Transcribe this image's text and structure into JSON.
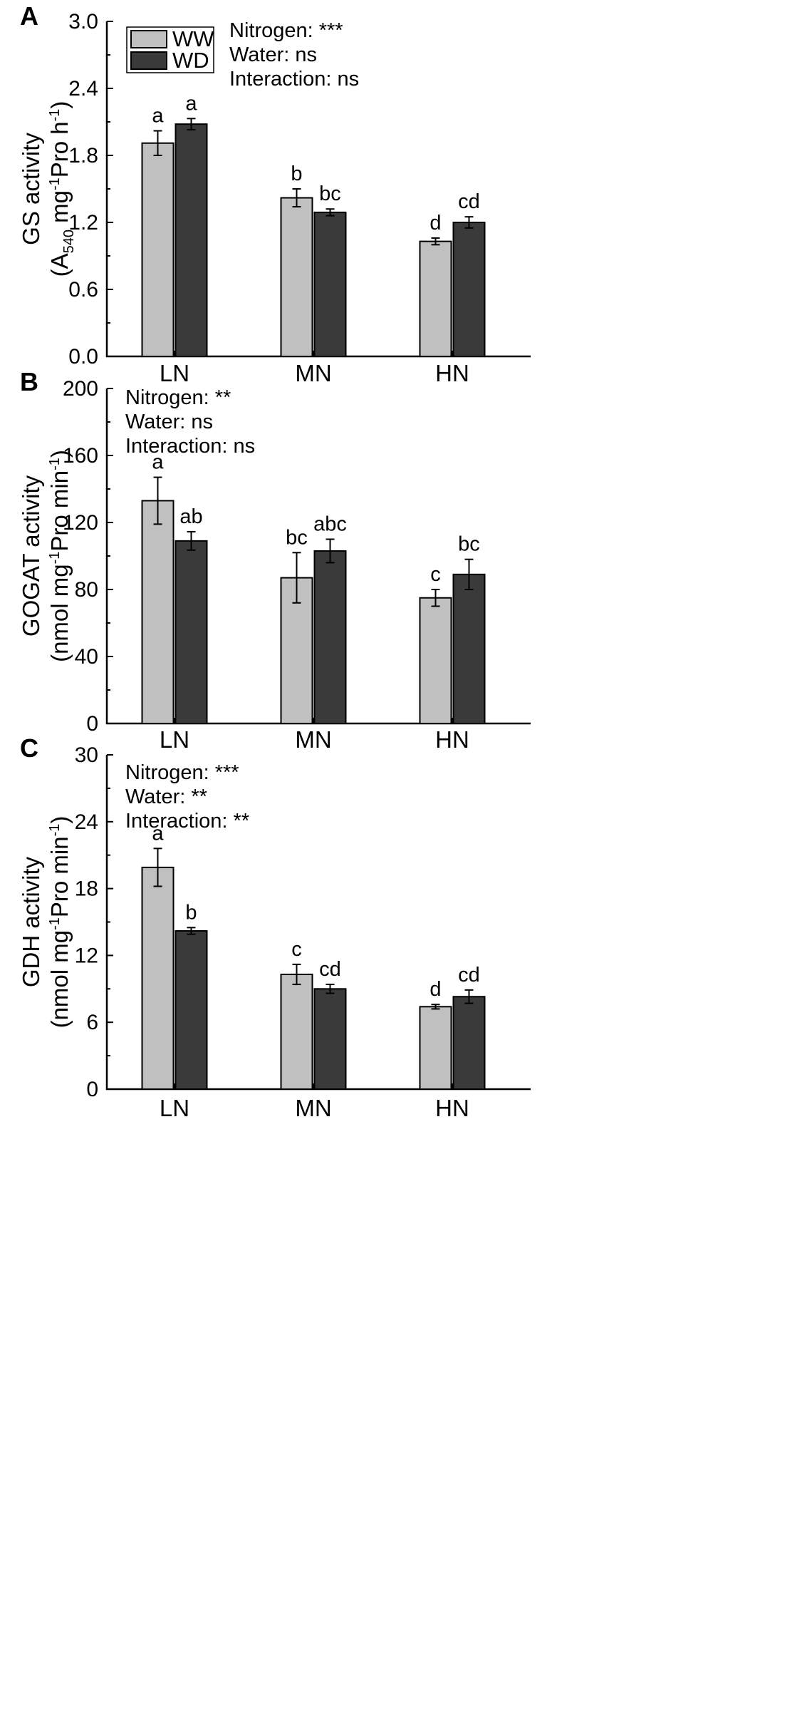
{
  "legend": {
    "items": [
      {
        "name": "WW",
        "color": "#c0c0c0"
      },
      {
        "name": "WD",
        "color": "#3a3a3a"
      }
    ]
  },
  "chart_data": [
    {
      "panel": "A",
      "type": "bar",
      "categories": [
        "LN",
        "MN",
        "HN"
      ],
      "ylim": [
        0,
        3.0
      ],
      "yticks": [
        "0.0",
        "0.6",
        "1.2",
        "1.8",
        "2.4",
        "3.0"
      ],
      "ylabel_main": "GS activity",
      "ylabel_unit": "(A540 mg-1Pro h-1)",
      "ylabel_parts": [
        "(A",
        "540",
        " mg",
        "-1",
        "Pro h",
        "-1",
        ")"
      ],
      "stats": [
        "Nitrogen: ***",
        "Water: ns",
        "Interaction: ns"
      ],
      "series": [
        {
          "name": "WW",
          "values": [
            1.91,
            1.42,
            1.03
          ],
          "errors": [
            0.11,
            0.08,
            0.03
          ],
          "letters": [
            "a",
            "b",
            "d"
          ]
        },
        {
          "name": "WD",
          "values": [
            2.08,
            1.29,
            1.2
          ],
          "errors": [
            0.05,
            0.03,
            0.05
          ],
          "letters": [
            "a",
            "bc",
            "cd"
          ]
        }
      ]
    },
    {
      "panel": "B",
      "type": "bar",
      "categories": [
        "LN",
        "MN",
        "HN"
      ],
      "ylim": [
        0,
        200
      ],
      "yticks": [
        "0",
        "40",
        "80",
        "120",
        "160",
        "200"
      ],
      "ylabel_main": "GOGAT activity",
      "ylabel_unit": "(nmol mg-1Pro min-1)",
      "ylabel_parts": [
        "(nmol mg",
        "-1",
        "Pro min",
        "-1",
        ")"
      ],
      "stats": [
        "Nitrogen: **",
        "Water: ns",
        "Interaction: ns"
      ],
      "series": [
        {
          "name": "WW",
          "values": [
            133,
            87,
            75
          ],
          "errors": [
            14,
            15,
            5
          ],
          "letters": [
            "a",
            "bc",
            "c"
          ]
        },
        {
          "name": "WD",
          "values": [
            109,
            103,
            89
          ],
          "errors": [
            5.5,
            7,
            9
          ],
          "letters": [
            "ab",
            "abc",
            "bc"
          ]
        }
      ]
    },
    {
      "panel": "C",
      "type": "bar",
      "categories": [
        "LN",
        "MN",
        "HN"
      ],
      "ylim": [
        0,
        30
      ],
      "yticks": [
        "0",
        "6",
        "12",
        "18",
        "24",
        "30"
      ],
      "ylabel_main": "GDH activity",
      "ylabel_unit": "(nmol mg-1Pro min-1)",
      "ylabel_parts": [
        "(nmol mg",
        "-1",
        "Pro min",
        "-1",
        ")"
      ],
      "stats": [
        "Nitrogen: ***",
        "Water: **",
        "Interaction: **"
      ],
      "series": [
        {
          "name": "WW",
          "values": [
            19.9,
            10.3,
            7.4
          ],
          "errors": [
            1.7,
            0.9,
            0.2
          ],
          "letters": [
            "a",
            "c",
            "d"
          ]
        },
        {
          "name": "WD",
          "values": [
            14.2,
            9.0,
            8.3
          ],
          "errors": [
            0.3,
            0.4,
            0.6
          ],
          "letters": [
            "b",
            "cd",
            "cd"
          ]
        }
      ]
    }
  ]
}
